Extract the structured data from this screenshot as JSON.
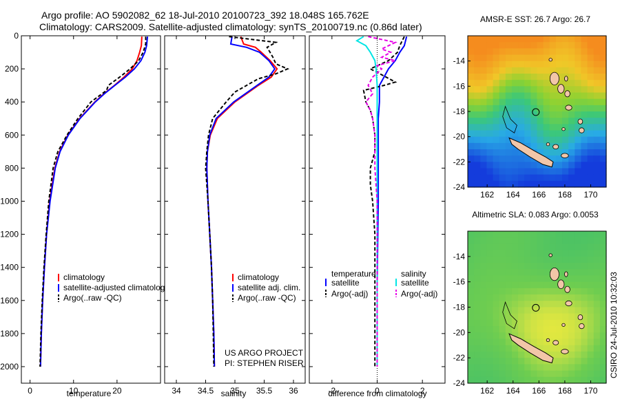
{
  "figure": {
    "title1": "Argo profile: AO 5902082_62 18-Jul-2010 20100723_392 18.048S 165.762E",
    "title2": "Climatology: CARS2009. Satellite-adjusted climatology: synTS_20100719.nc (0.86d later)",
    "side_label": "CSIRO 24-Jul-2010 10:32:03",
    "project1": "US ARGO PROJECT",
    "project2": "PI: STEPHEN RISER"
  },
  "colors": {
    "climatology": "#ff0000",
    "satellite": "#0000ff",
    "argo": "#000000",
    "satellite_diff_sal": "#00e5e5",
    "argo_diff_sal": "#e600e6",
    "land": "#f2c6a8"
  },
  "chart_data": [
    {
      "type": "line",
      "name": "temperature",
      "xlabel": "temperature",
      "xlim": [
        -2,
        30
      ],
      "ylim": [
        2100,
        0
      ],
      "xticks": [
        0,
        10,
        20
      ],
      "yticks": [
        0,
        200,
        400,
        600,
        800,
        1000,
        1200,
        1400,
        1600,
        1800,
        2000
      ],
      "legend": [
        "climatology",
        "satellite-adjusted climatology",
        "Argo(..raw -QC)"
      ],
      "series": [
        {
          "name": "climatology",
          "color": "#ff0000",
          "dash": "",
          "y": [
            5,
            60,
            100,
            150,
            200,
            250,
            300,
            350,
            400,
            500,
            600,
            700,
            800,
            1000,
            1200,
            1400,
            1600,
            1800,
            2000
          ],
          "x": [
            25.7,
            25.6,
            25.2,
            24.6,
            23.5,
            21.6,
            19.4,
            17.0,
            14.9,
            11.4,
            8.7,
            6.8,
            5.7,
            4.5,
            3.8,
            3.3,
            2.9,
            2.6,
            2.4
          ]
        },
        {
          "name": "satellite",
          "color": "#0000ff",
          "dash": "",
          "y": [
            5,
            60,
            100,
            150,
            200,
            250,
            300,
            350,
            400,
            500,
            600,
            700,
            800,
            1000,
            1200,
            1400,
            1600,
            1800,
            2000
          ],
          "x": [
            27.0,
            26.8,
            26.4,
            25.5,
            24.0,
            21.9,
            19.5,
            17.1,
            15.0,
            11.5,
            8.8,
            6.9,
            5.8,
            4.6,
            3.8,
            3.3,
            2.9,
            2.6,
            2.4
          ]
        },
        {
          "name": "Argo",
          "color": "#000000",
          "dash": "5,3",
          "y": [
            5,
            50,
            100,
            150,
            200,
            250,
            300,
            330,
            400,
            500,
            600,
            700,
            800,
            1000,
            1200,
            1400,
            1600,
            1800,
            2000
          ],
          "x": [
            26.6,
            26.6,
            26.0,
            25.0,
            23.0,
            20.6,
            18.0,
            17.6,
            14.0,
            11.0,
            8.5,
            6.4,
            5.3,
            4.3,
            3.7,
            3.2,
            2.8,
            2.5,
            2.3
          ]
        }
      ]
    },
    {
      "type": "line",
      "name": "salinity",
      "xlabel": "salinity",
      "xlim": [
        33.8,
        36.2
      ],
      "ylim": [
        2100,
        0
      ],
      "xticks": [
        34,
        34.5,
        35,
        35.5,
        36
      ],
      "yticks": [
        0,
        200,
        400,
        600,
        800,
        1000,
        1200,
        1400,
        1600,
        1800,
        2000
      ],
      "legend": [
        "climatology",
        "satellite adj. clim.",
        "Argo(..raw -QC)"
      ],
      "series": [
        {
          "name": "climatology",
          "color": "#ff0000",
          "dash": "",
          "y": [
            5,
            50,
            70,
            100,
            150,
            200,
            250,
            300,
            400,
            500,
            600,
            700,
            800,
            1000,
            1200,
            1400,
            1600,
            1800,
            2000
          ],
          "x": [
            35.1,
            35.15,
            35.35,
            35.45,
            35.6,
            35.72,
            35.62,
            35.4,
            35.0,
            34.7,
            34.58,
            34.53,
            34.52,
            34.54,
            34.57,
            34.6,
            34.62,
            34.64,
            34.65
          ]
        },
        {
          "name": "satellite",
          "color": "#0000ff",
          "dash": "",
          "y": [
            5,
            50,
            70,
            100,
            150,
            200,
            250,
            300,
            400,
            500,
            600,
            700,
            800,
            1000,
            1200,
            1400,
            1600,
            1800,
            2000
          ],
          "x": [
            34.95,
            34.93,
            35.2,
            35.42,
            35.58,
            35.68,
            35.58,
            35.38,
            34.98,
            34.68,
            34.57,
            34.53,
            34.52,
            34.54,
            34.57,
            34.6,
            34.62,
            34.64,
            34.65
          ]
        },
        {
          "name": "Argo",
          "color": "#000000",
          "dash": "5,3",
          "y": [
            5,
            40,
            70,
            100,
            130,
            170,
            200,
            230,
            260,
            300,
            340,
            400,
            500,
            600,
            700,
            800,
            1000,
            1200,
            1400,
            1600,
            1800,
            2000
          ],
          "x": [
            34.9,
            35.7,
            35.55,
            35.6,
            35.65,
            35.7,
            35.9,
            35.7,
            35.4,
            35.2,
            35.0,
            34.85,
            34.62,
            34.55,
            34.52,
            34.5,
            34.54,
            34.57,
            34.6,
            34.62,
            34.63,
            34.64
          ]
        }
      ]
    },
    {
      "type": "line",
      "name": "difference",
      "xlabel": "difference from climatology",
      "xlim": [
        -3,
        3
      ],
      "ylim": [
        2100,
        0
      ],
      "xticks": [
        -2,
        0,
        2
      ],
      "yticks": [
        0,
        200,
        400,
        600,
        800,
        1000,
        1200,
        1400,
        1600,
        1800,
        2000
      ],
      "legend": {
        "temperature": [
          "temperature",
          "satellite",
          "Argo(-adj)"
        ],
        "salinity": [
          "salinity",
          "satellite",
          "Argo(-adj)"
        ]
      },
      "series": [
        {
          "name": "temperature satellite",
          "color": "#0000ff",
          "dash": "",
          "y": [
            5,
            60,
            100,
            150,
            200,
            250,
            300,
            400,
            500,
            700,
            1000,
            1500,
            2000
          ],
          "x": [
            1.3,
            1.2,
            1.0,
            0.8,
            0.5,
            0.3,
            0.1,
            0.1,
            0.05,
            0.05,
            0.05,
            0.0,
            0.0
          ]
        },
        {
          "name": "temperature Argo",
          "color": "#000000",
          "dash": "5,3",
          "y": [
            5,
            60,
            100,
            150,
            200,
            250,
            280,
            300,
            330,
            400,
            450,
            500,
            600,
            700,
            800,
            900,
            1000,
            1200,
            1500,
            2000
          ],
          "x": [
            1.2,
            1.0,
            0.9,
            0.5,
            -0.3,
            0.4,
            0.8,
            0.3,
            -0.6,
            -0.5,
            -0.3,
            -0.2,
            -0.1,
            -0.1,
            -0.3,
            -0.3,
            -0.2,
            -0.1,
            -0.1,
            -0.1
          ]
        },
        {
          "name": "salinity satellite",
          "color": "#00e5e5",
          "dash": "",
          "y": [
            5,
            30,
            60,
            100,
            150,
            200,
            300,
            400,
            600,
            1000,
            1500,
            2000
          ],
          "x": [
            -0.6,
            -0.9,
            -0.5,
            -0.3,
            -0.1,
            -0.05,
            0.0,
            0.0,
            0.0,
            0.0,
            0.0,
            0.0
          ]
        },
        {
          "name": "salinity Argo",
          "color": "#e600e6",
          "dash": "5,3",
          "y": [
            5,
            40,
            80,
            100,
            130,
            150,
            180,
            200,
            250,
            300,
            350,
            400,
            450,
            500,
            600,
            700,
            800,
            1000,
            1500,
            2000
          ],
          "x": [
            -0.4,
            0.8,
            0.2,
            0.6,
            0.2,
            0.8,
            0.0,
            0.2,
            -0.2,
            -0.4,
            -0.2,
            -0.5,
            -0.3,
            -0.2,
            -0.1,
            -0.1,
            -0.1,
            0.0,
            0.0,
            0.0
          ]
        }
      ]
    },
    {
      "type": "heatmap",
      "name": "sst map",
      "title": "AMSR-E SST: 26.7 Argo: 26.7",
      "xlim": [
        160.5,
        171.2
      ],
      "ylim": [
        -24,
        -12
      ],
      "xticks": [
        162,
        164,
        166,
        168,
        170
      ],
      "yticks": [
        -14,
        -16,
        -18,
        -20,
        -22,
        -24
      ],
      "marker": {
        "lon": 165.762,
        "lat": -18.048
      }
    },
    {
      "type": "heatmap",
      "name": "sla map",
      "title": "Altimetric SLA: 0.083 Argo: 0.0053",
      "xlim": [
        160.5,
        171.2
      ],
      "ylim": [
        -24,
        -12
      ],
      "xticks": [
        162,
        164,
        166,
        168,
        170
      ],
      "yticks": [
        -14,
        -16,
        -18,
        -20,
        -22,
        -24
      ],
      "marker": {
        "lon": 165.762,
        "lat": -18.048
      }
    }
  ]
}
